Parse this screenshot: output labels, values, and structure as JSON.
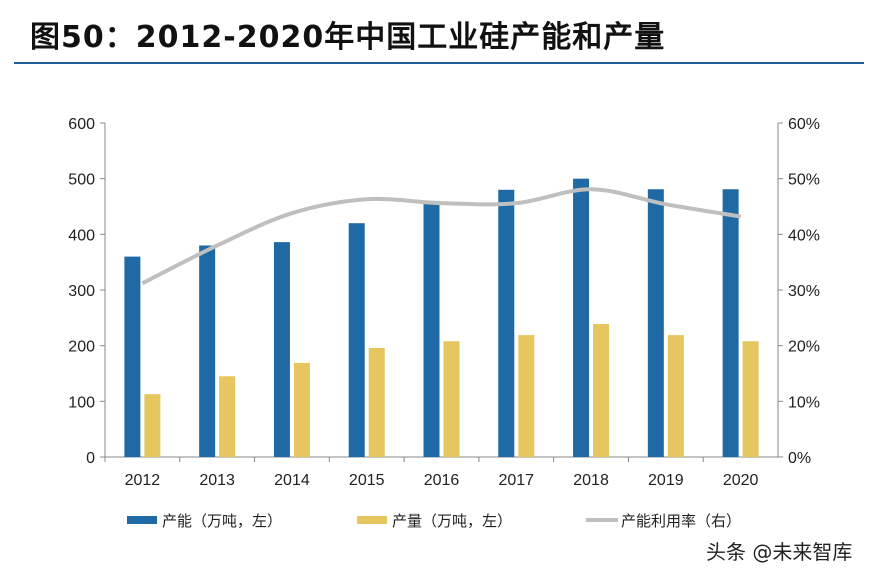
{
  "title": "图50：2012-2020年中国工业硅产能和产量",
  "watermark": "头条 @未来智库",
  "chart_data": {
    "type": "bar+line",
    "categories": [
      "2012",
      "2013",
      "2014",
      "2015",
      "2016",
      "2017",
      "2018",
      "2019",
      "2020"
    ],
    "ylim_left": [
      0,
      600
    ],
    "yticks_left": [
      "0",
      "100",
      "200",
      "300",
      "400",
      "500",
      "600"
    ],
    "ylim_right": [
      0,
      60
    ],
    "yticks_right": [
      "0%",
      "10%",
      "20%",
      "30%",
      "40%",
      "50%",
      "60%"
    ],
    "grid": false,
    "legend_position": "bottom",
    "series": [
      {
        "name": "产能（万吨，左）",
        "type": "bar",
        "axis": "left",
        "color": "#1f6aa5",
        "values": [
          360,
          380,
          386,
          420,
          460,
          480,
          500,
          481,
          481
        ]
      },
      {
        "name": "产量（万吨，左）",
        "type": "bar",
        "axis": "left",
        "color": "#e5c65f",
        "values": [
          113,
          145,
          169,
          196,
          208,
          219,
          239,
          219,
          208
        ]
      },
      {
        "name": "产能利用率（右）",
        "type": "line",
        "axis": "right",
        "color": "#bfbfbf",
        "values": [
          31.2,
          38.0,
          43.8,
          46.3,
          45.6,
          45.6,
          48.1,
          45.4,
          43.2
        ]
      }
    ]
  }
}
